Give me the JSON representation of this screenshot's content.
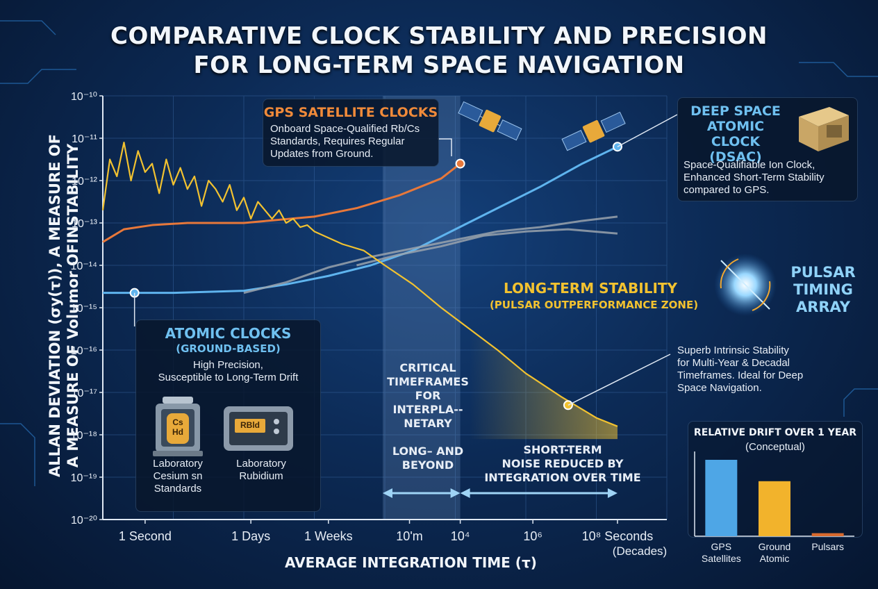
{
  "title_lines": [
    "COMPARATIVE CLOCK STABILITY AND PRECISION",
    "FOR LONG-TERM SPACE NAVIGATION"
  ],
  "colors": {
    "gps": "#e8783a",
    "atomic": "#5fb4ee",
    "pulsar": "#f2c230",
    "gray": "#9aa3ad",
    "grid": "#3b6aa8"
  },
  "chart_data": [
    {
      "type": "line",
      "title": "COMPARATIVE CLOCK STABILITY AND PRECISION FOR LONG-TERM SPACE NAVIGATION",
      "xlabel": "AVERAGE INTEGRATION TIME (τ)",
      "ylabel_lines": [
        "ALLAN DEVIATION (σy(τ)), A MEASURE OF",
        "A MEASURE OF Volumor OFINSTABILITY"
      ],
      "x_scale": "log (seconds)",
      "x_ticks": [
        "1 Second",
        "1 Days",
        "1 Weeks",
        "10'm",
        "10⁴",
        "10⁶",
        "10⁸ Seconds"
      ],
      "x_tick_note": "(Decades)",
      "y_scale": "log",
      "y_ticks": [
        "10⁻¹⁰",
        "10⁻¹¹",
        "10⁻¹²",
        "10⁻¹³",
        "10⁻¹⁴",
        "10⁻¹⁵",
        "10⁻¹⁶",
        "10⁻¹⁷",
        "10⁻¹⁸",
        "10⁻¹⁹",
        "10⁻²⁰"
      ],
      "ylim": [
        -20,
        -10
      ],
      "grid": true,
      "shaded_region": {
        "x": [
          3.97,
          5.07
        ],
        "label_lines": [
          "CRITICAL",
          "TIMEFRAMES",
          "FOR",
          "INTERPLA--",
          "NETARY",
          "",
          "LONG– AND",
          "BEYOND"
        ]
      },
      "series": [
        {
          "name": "GPS SATELLITE CLOCKS",
          "color": "#e8783a",
          "x": [
            0,
            0.3,
            0.7,
            1.2,
            2.0,
            3.0,
            3.6,
            4.2,
            4.8,
            5.07
          ],
          "y": [
            -13.45,
            -13.15,
            -13.05,
            -13.0,
            -13.0,
            -12.85,
            -12.65,
            -12.35,
            -11.95,
            -11.6
          ]
        },
        {
          "name": "ATOMIC CLOCKS (GROUND-BASED)",
          "color": "#5fb4ee",
          "x": [
            0,
            0.5,
            1.0,
            2.0,
            2.6,
            3.2,
            3.8,
            4.4,
            5.0,
            5.6,
            6.2,
            6.8,
            7.3
          ],
          "y": [
            -14.65,
            -14.65,
            -14.65,
            -14.6,
            -14.45,
            -14.25,
            -14.0,
            -13.65,
            -13.15,
            -12.65,
            -12.15,
            -11.6,
            -11.2
          ]
        },
        {
          "name": "gray upper",
          "color": "#9aa3ad",
          "x": [
            2.0,
            2.6,
            3.2,
            3.8,
            4.4,
            5.0,
            5.6,
            6.2,
            6.8,
            7.3
          ],
          "y": [
            -14.65,
            -14.4,
            -14.05,
            -13.8,
            -13.6,
            -13.4,
            -13.2,
            -13.1,
            -12.95,
            -12.85
          ]
        },
        {
          "name": "gray lower",
          "color": "#9aa3ad",
          "x": [
            3.6,
            4.2,
            4.8,
            5.4,
            6.0,
            6.6,
            7.3
          ],
          "y": [
            -14.0,
            -13.75,
            -13.55,
            -13.3,
            -13.2,
            -13.15,
            -13.25
          ]
        },
        {
          "name": "PULSAR TIMING ARRAY",
          "color": "#f2c230",
          "x": [
            0,
            0.1,
            0.2,
            0.3,
            0.4,
            0.5,
            0.6,
            0.7,
            0.8,
            0.9,
            1.0,
            1.1,
            1.2,
            1.3,
            1.4,
            1.5,
            1.6,
            1.7,
            1.8,
            1.9,
            2.0,
            2.1,
            2.2,
            2.3,
            2.4,
            2.5,
            2.6,
            2.7,
            2.8,
            2.9,
            3.0,
            3.2,
            3.4,
            3.7,
            4.0,
            4.4,
            4.8,
            5.2,
            5.6,
            6.0,
            6.5,
            7.0,
            7.3
          ],
          "y": [
            -12.7,
            -11.5,
            -11.9,
            -11.1,
            -12.0,
            -11.3,
            -11.8,
            -11.6,
            -12.3,
            -11.5,
            -12.1,
            -11.7,
            -12.2,
            -11.9,
            -12.6,
            -12.0,
            -12.2,
            -12.5,
            -12.1,
            -12.7,
            -12.4,
            -12.9,
            -12.5,
            -12.7,
            -12.9,
            -12.7,
            -13.0,
            -12.9,
            -13.1,
            -13.05,
            -13.2,
            -13.35,
            -13.5,
            -13.65,
            -14.0,
            -14.45,
            -15.0,
            -15.5,
            -16.0,
            -16.55,
            -17.1,
            -17.6,
            -17.8
          ]
        }
      ],
      "points": [
        {
          "series": "GPS SATELLITE CLOCKS",
          "x": 5.07,
          "y": -11.6
        },
        {
          "series": "ATOMIC CLOCKS (GROUND-BASED)",
          "x": 0.45,
          "y": -14.65
        },
        {
          "series": "DEEP SPACE ATOMIC CLOCK (DSAC)",
          "x": 7.3,
          "y": -11.2
        },
        {
          "series": "PULSAR TIMING ARRAY",
          "x": 6.6,
          "y": -17.3
        }
      ]
    },
    {
      "type": "bar",
      "title": "RELATIVE DRIFT OVER 1 YEAR",
      "subtitle": "(Conceptual)",
      "categories": [
        "GPS Satellites",
        "Ground Atomic",
        "Pulsars"
      ],
      "values": [
        100,
        72,
        4
      ],
      "colors": [
        "#4ea6e6",
        "#f2b32c",
        "#d86a2e"
      ]
    }
  ],
  "annotations": {
    "gps": {
      "title": "GPS SATELLITE CLOCKS",
      "lines": [
        "Onboard Space-Qualified Rb/Cs",
        "Standards, Requires Regular",
        "Updates from Ground."
      ]
    },
    "dsac": {
      "title_lines": [
        "DEEP SPACE",
        "ATOMIC CLOCK",
        "(DSAC)"
      ],
      "lines": [
        "Space-Qualifiable Ion Clock,",
        "Enhanced Short-Term Stability",
        "compared to GPS."
      ]
    },
    "pulsar": {
      "title_lines": [
        "PULSAR",
        "TIMING",
        "ARRAY"
      ],
      "lines": [
        "Superb Intrinsic Stability",
        "for Multi-Year & Decadal",
        "Timeframes. Ideal for Deep",
        "Space Navigation."
      ]
    },
    "long_term": {
      "title": "LONG-TERM STABILITY",
      "subtitle": "(PULSAR OUTPERFORMANCE ZONE)"
    },
    "atomic": {
      "title": "ATOMIC CLOCKS",
      "subtitle": "(GROUND-BASED)",
      "lines": [
        "High Precision,",
        "Susceptible to Long-Term Drift"
      ],
      "cesium": {
        "badge_lines": [
          "Cs",
          "Hd"
        ],
        "label_lines": [
          "Laboratory",
          "Cesium sn",
          "Standards"
        ]
      },
      "rubidium": {
        "badge": "RBld",
        "label_lines": [
          "Laboratory",
          "Rubidium"
        ]
      }
    },
    "short_term": {
      "lines": [
        "SHORT-TERM",
        "NOISE REDUCED BY",
        "INTEGRATION OVER TIME"
      ]
    }
  }
}
